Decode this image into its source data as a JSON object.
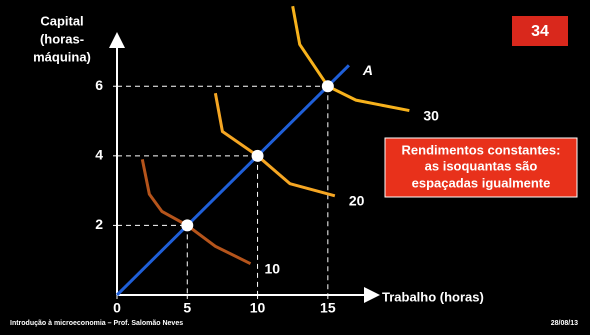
{
  "chart_data": {
    "type": "line",
    "y_label_lines": [
      "Capital",
      "(horas-",
      "máquina)"
    ],
    "x_label": "Trabalho (horas)",
    "xlim": [
      0,
      18
    ],
    "ylim": [
      0,
      7.3
    ],
    "xticks": [
      0,
      5,
      10,
      15
    ],
    "yticks": [
      2,
      4,
      6
    ],
    "series": [
      {
        "name": "A",
        "color": "#1f5fd8",
        "x": [
          0,
          16.5
        ],
        "values": [
          0,
          6.6
        ]
      },
      {
        "name": "10",
        "color": "#b5541b",
        "x": [
          1.8,
          2.3,
          3.2,
          5,
          7,
          9.5
        ],
        "values": [
          3.9,
          2.9,
          2.4,
          2,
          1.4,
          0.9
        ]
      },
      {
        "name": "20",
        "color": "#f5a623",
        "x": [
          7,
          7.5,
          10,
          12.3,
          15.5
        ],
        "values": [
          5.8,
          4.7,
          4,
          3.2,
          2.85
        ]
      },
      {
        "name": "30",
        "color": "#f7b21c",
        "x": [
          12.5,
          13,
          15,
          17,
          20.8
        ],
        "values": [
          8.3,
          7.2,
          6,
          5.6,
          5.3
        ]
      }
    ],
    "points": {
      "x": [
        5,
        10,
        15
      ],
      "values": [
        2,
        4,
        6
      ]
    },
    "slide_number": "34",
    "annotation_lines": [
      "Rendimentos  constantes:",
      "as isoquantas são",
      "espaçadas igualmente"
    ],
    "footer_left": "Introdução à microeconomia – Prof. Salomão Neves",
    "footer_right": "28/08/13"
  }
}
